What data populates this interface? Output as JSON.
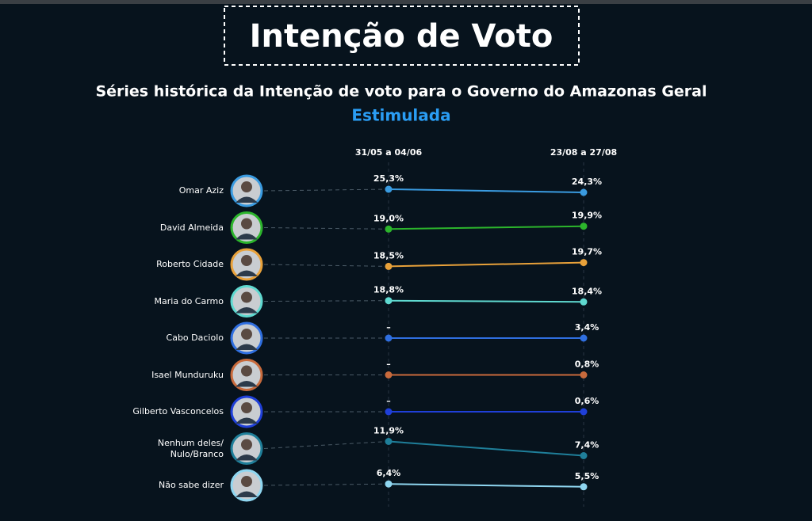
{
  "chart_data": {
    "type": "slope",
    "title": "Intenção de Voto",
    "subtitle": "Séries histórica da Intenção de voto para o Governo do Amazonas Geral",
    "annotation": "Estimulada",
    "categories": [
      "31/05 a 04/06",
      "23/08 a 27/08"
    ],
    "series": [
      {
        "name": "Omar Aziz",
        "color": "#3a9be0",
        "values": [
          25.3,
          24.3
        ],
        "value_labels": [
          "25,3%",
          "24,3%"
        ]
      },
      {
        "name": "David Almeida",
        "color": "#2cb52c",
        "values": [
          19.0,
          19.9
        ],
        "value_labels": [
          "19,0%",
          "19,9%"
        ]
      },
      {
        "name": "Roberto Cidade",
        "color": "#e8a13a",
        "values": [
          18.5,
          19.7
        ],
        "value_labels": [
          "18,5%",
          "19,7%"
        ]
      },
      {
        "name": "Maria do Carmo",
        "color": "#5fd9d0",
        "values": [
          18.8,
          18.4
        ],
        "value_labels": [
          "18,8%",
          "18,4%"
        ]
      },
      {
        "name": "Cabo Daciolo",
        "color": "#2f6fe0",
        "values": [
          null,
          3.4
        ],
        "value_labels": [
          "–",
          "3,4%"
        ]
      },
      {
        "name": "Isael Munduruku",
        "color": "#c86a3c",
        "values": [
          null,
          0.8
        ],
        "value_labels": [
          "–",
          "0,8%"
        ]
      },
      {
        "name": "Gilberto Vasconcelos",
        "color": "#1f3fd8",
        "values": [
          null,
          0.6
        ],
        "value_labels": [
          "–",
          "0,6%"
        ]
      },
      {
        "name": "Nenhum deles/\nNulo/Branco",
        "color": "#1f7f9a",
        "values": [
          11.9,
          7.4
        ],
        "value_labels": [
          "11,9%",
          "7,4%"
        ]
      },
      {
        "name": "Não sabe dizer",
        "color": "#8fd6f0",
        "values": [
          6.4,
          5.5
        ],
        "value_labels": [
          "6,4%",
          "5,5%"
        ]
      }
    ]
  }
}
